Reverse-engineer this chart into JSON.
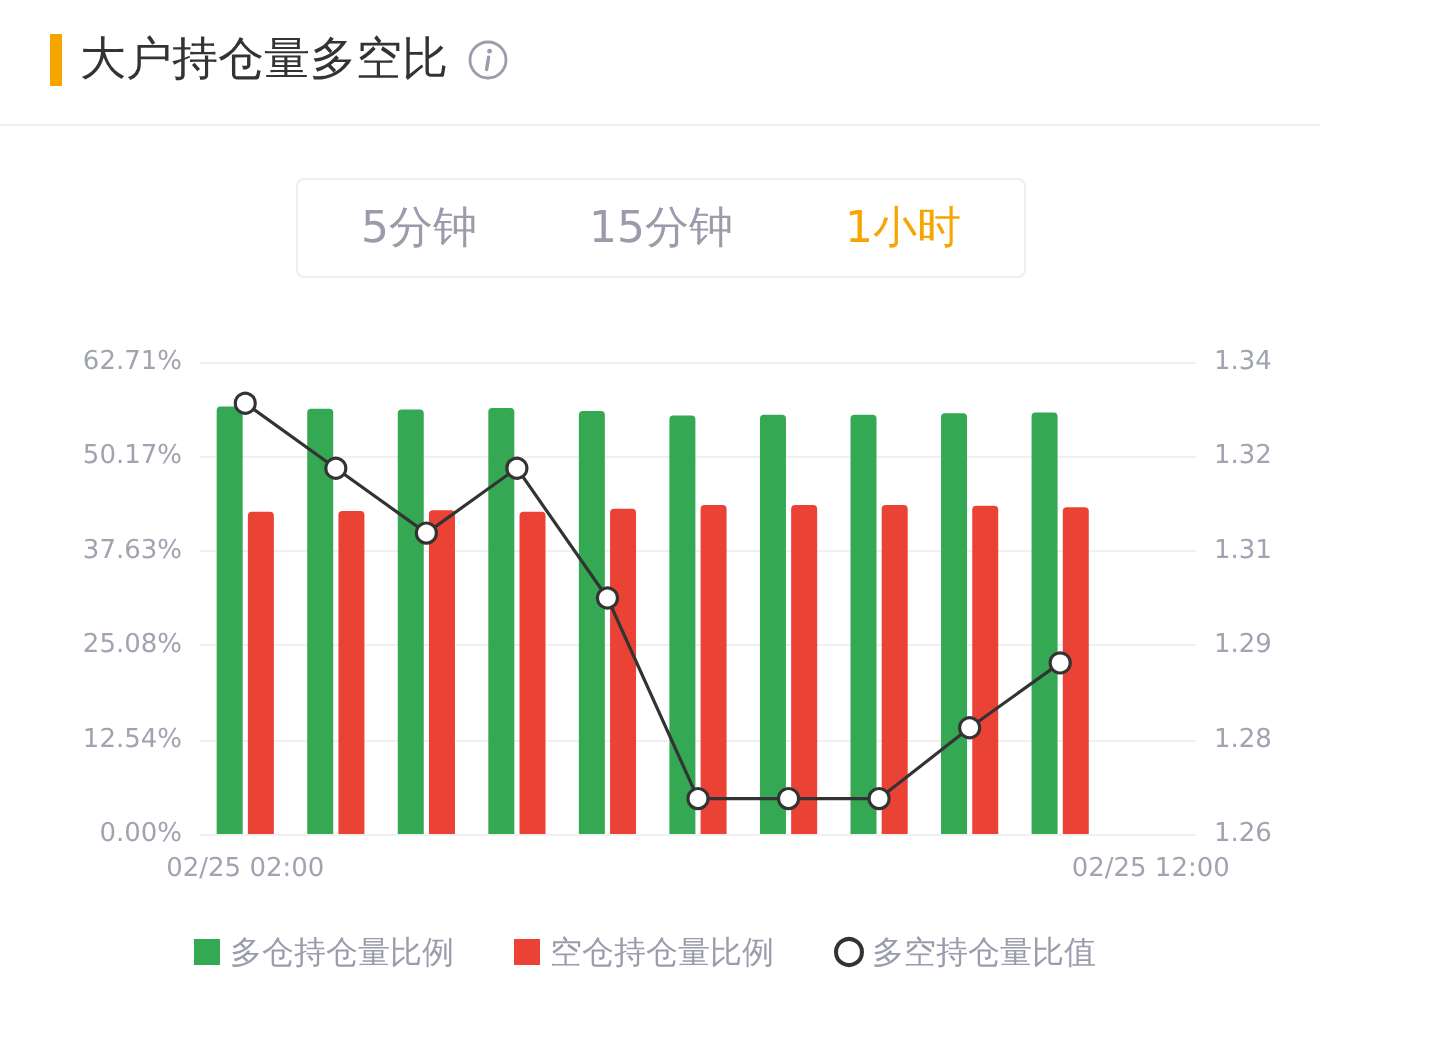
{
  "chart_data": {
    "type": "bar",
    "title": "大户持仓量多空比",
    "annotations": [
      "5分钟",
      "15分钟",
      "1小时"
    ],
    "categories": [
      "02/25 02:00",
      null,
      null,
      null,
      null,
      null,
      null,
      null,
      null,
      null,
      "02/25 12:00"
    ],
    "ylim": [
      0,
      62.71
    ],
    "yticks": [
      {
        "value": 0,
        "label": "0.00%"
      },
      {
        "value": 12.54,
        "label": "12.54%"
      },
      {
        "value": 25.08,
        "label": "25.08%"
      },
      {
        "value": 37.63,
        "label": "37.63%"
      },
      {
        "value": 50.17,
        "label": "50.17%"
      },
      {
        "value": 62.71,
        "label": "62.71%"
      }
    ],
    "y2lim": [
      1.26,
      1.34
    ],
    "y2ticks": [
      1.26,
      {
        "value": 1.276,
        "label": "1.28"
      },
      {
        "value": 1.292,
        "label": "1.29"
      },
      {
        "value": 1.308,
        "label": "1.31"
      },
      {
        "value": 1.324,
        "label": "1.32"
      },
      1.34
    ],
    "series": [
      {
        "name": "多仓持仓量比例",
        "color": "#34a853",
        "values": [
          56.8,
          56.5,
          56.4,
          56.6,
          56.2,
          55.6,
          55.7,
          55.7,
          55.9,
          56.0,
          null
        ]
      },
      {
        "name": "空仓持仓量比例",
        "color": "#ea4335",
        "values": [
          42.8,
          42.9,
          43.0,
          42.8,
          43.2,
          43.7,
          43.7,
          43.7,
          43.6,
          43.4,
          null
        ]
      },
      {
        "name": "多空持仓量比值",
        "type": "line",
        "axis": "y2",
        "color": "#333333",
        "values": [
          1.333,
          1.322,
          1.311,
          1.322,
          1.3,
          1.266,
          1.266,
          1.266,
          1.278,
          1.289,
          null
        ]
      }
    ],
    "grid": "y",
    "legend": "bottom",
    "marker": "circle"
  }
}
